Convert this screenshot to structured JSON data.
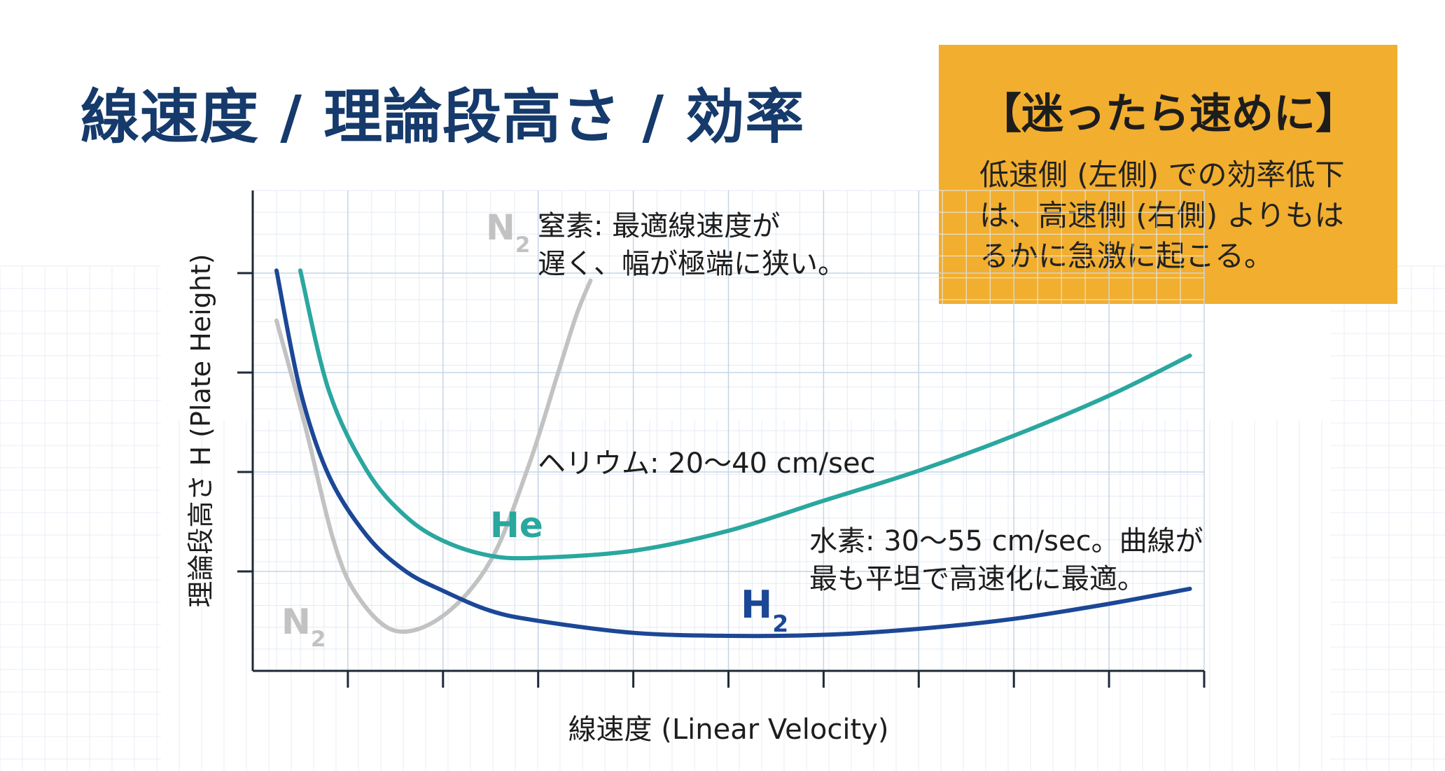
{
  "slide": {
    "title": "線速度 / 理論段高さ / 効率"
  },
  "tip_box": {
    "title": "【迷ったら速めに】",
    "body": "低速側 (左側) での効率低下は、高速側 (右側) よりもはるかに急激に起こる。",
    "background": "#f2ae2e"
  },
  "chart_data": {
    "type": "line",
    "xlabel": "線速度 (Linear Velocity)",
    "ylabel": "理論段高さ H (Plate Height)",
    "x_ticks": 10,
    "y_ticks": 4,
    "grid": true,
    "series": [
      {
        "name": "N₂",
        "color": "#c2c2c2",
        "x": [
          0.25,
          0.55,
          0.85,
          1.1,
          1.5,
          2.0,
          2.5,
          2.9,
          3.2,
          3.4,
          3.55
        ],
        "y": [
          3.5,
          2.45,
          1.3,
          0.75,
          0.4,
          0.55,
          1.1,
          2.05,
          2.95,
          3.55,
          3.9
        ]
      },
      {
        "name": "He",
        "color": "#2aa79f",
        "x": [
          0.5,
          0.8,
          1.2,
          1.6,
          2.0,
          2.5,
          3.0,
          4.0,
          5.0,
          6.0,
          7.0,
          8.0,
          9.0,
          9.85
        ],
        "y": [
          4.0,
          2.8,
          2.0,
          1.55,
          1.3,
          1.15,
          1.13,
          1.2,
          1.4,
          1.7,
          2.0,
          2.35,
          2.75,
          3.15
        ]
      },
      {
        "name": "H₂",
        "color": "#1c4796",
        "x": [
          0.25,
          0.5,
          0.8,
          1.2,
          1.6,
          2.0,
          2.5,
          3.0,
          4.0,
          5.0,
          6.0,
          7.0,
          8.0,
          9.0,
          9.85
        ],
        "y": [
          4.0,
          2.8,
          1.95,
          1.35,
          1.0,
          0.8,
          0.6,
          0.5,
          0.38,
          0.35,
          0.36,
          0.42,
          0.52,
          0.67,
          0.82
        ]
      }
    ],
    "series_labels": [
      {
        "text": "N",
        "sub": "2",
        "color": "#c2c2c2"
      },
      {
        "text": "N",
        "sub": "2",
        "color": "#c2c2c2"
      },
      {
        "text": "He",
        "sub": "",
        "color": "#2aa79f"
      },
      {
        "text": "H",
        "sub": "2",
        "color": "#1c4796"
      }
    ],
    "annotations": [
      {
        "lines": [
          "窒素: 最適線速度が",
          "遅く、幅が極端に狭い。"
        ]
      },
      {
        "lines": [
          "ヘリウム: 20〜40 cm/sec"
        ]
      },
      {
        "lines": [
          "水素: 30〜55 cm/sec。曲線が",
          "最も平坦で高速化に最適。"
        ]
      }
    ],
    "xlim": [
      0,
      10
    ],
    "ylim": [
      0,
      4.8
    ]
  }
}
